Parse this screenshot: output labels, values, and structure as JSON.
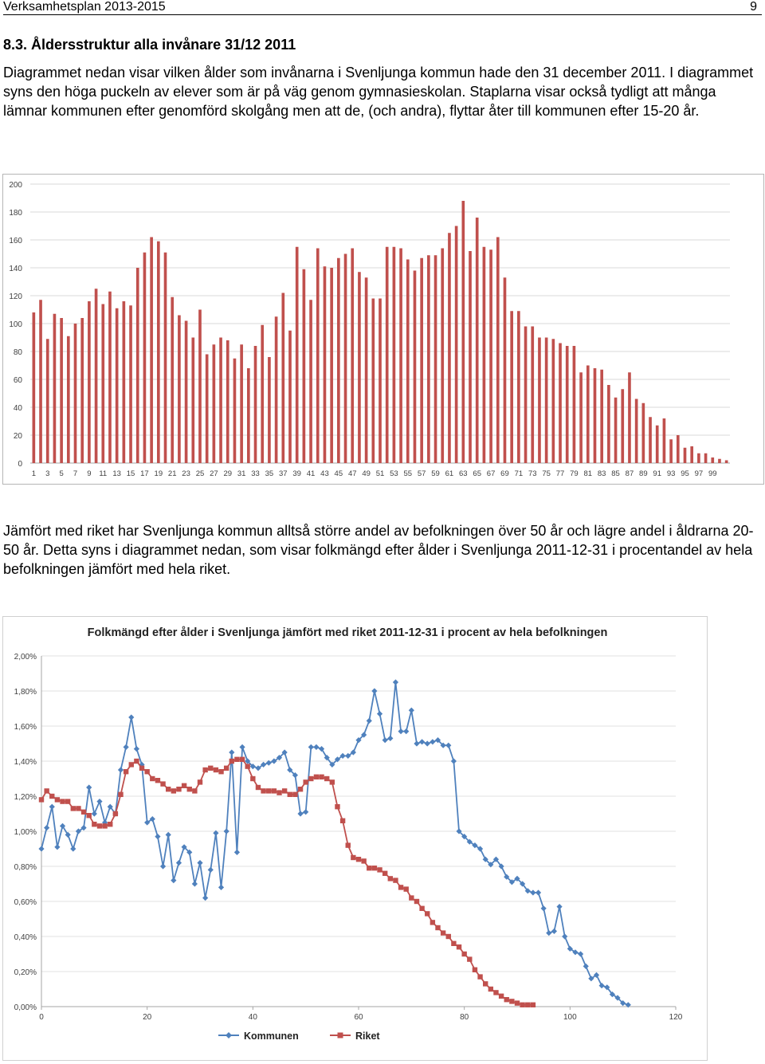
{
  "page": {
    "header_title": "Verksamhetsplan 2013-2015",
    "page_number": "9",
    "heading": "8.3. Åldersstruktur alla invånare 31/12 2011",
    "paragraph1": "Diagrammet nedan visar vilken ålder som invånarna i Svenljunga kommun hade den 31 december 2011. I diagrammet syns den höga puckeln av elever som är på väg genom gymnasieskolan. Staplarna visar också tydligt att många lämnar kommunen efter genomförd skolgång men att de, (och andra), flyttar åter till kommunen efter 15-20 år.",
    "paragraph2": "Jämfört med riket har Svenljunga kommun alltså större andel av befolkningen över 50 år och lägre andel i åldrarna 20-50 år. Detta syns i diagrammet nedan, som visar folkmängd efter ålder i Svenljunga 2011-12-31 i procentandel av hela befolkningen jämfört med hela riket."
  },
  "chart_data": [
    {
      "type": "bar",
      "title": "",
      "xlabel": "",
      "ylabel": "",
      "ylim": [
        0,
        200
      ],
      "yticks": [
        0,
        20,
        40,
        60,
        80,
        100,
        120,
        140,
        160,
        180,
        200
      ],
      "x_tick_labels": [
        "1",
        "3",
        "5",
        "7",
        "9",
        "11",
        "13",
        "15",
        "17",
        "19",
        "21",
        "23",
        "25",
        "27",
        "29",
        "31",
        "33",
        "35",
        "37",
        "39",
        "41",
        "43",
        "45",
        "47",
        "49",
        "51",
        "53",
        "55",
        "57",
        "59",
        "61",
        "63",
        "65",
        "67",
        "69",
        "71",
        "73",
        "75",
        "77",
        "79",
        "81",
        "83",
        "85",
        "87",
        "89",
        "91",
        "93",
        "95",
        "97",
        "99"
      ],
      "grid": true,
      "color": "#c0504d",
      "values": [
        108,
        117,
        89,
        107,
        104,
        91,
        100,
        104,
        116,
        125,
        114,
        123,
        111,
        116,
        113,
        140,
        151,
        162,
        159,
        151,
        119,
        106,
        102,
        90,
        110,
        78,
        85,
        90,
        88,
        75,
        85,
        68,
        84,
        99,
        76,
        105,
        122,
        95,
        155,
        139,
        117,
        154,
        141,
        140,
        147,
        150,
        154,
        137,
        133,
        118,
        118,
        155,
        155,
        154,
        146,
        138,
        147,
        149,
        149,
        154,
        165,
        170,
        188,
        152,
        176,
        155,
        153,
        162,
        133,
        109,
        109,
        98,
        98,
        90,
        90,
        89,
        86,
        84,
        84,
        65,
        70,
        68,
        67,
        56,
        47,
        53,
        65,
        46,
        43,
        33,
        27,
        32,
        17,
        20,
        11,
        12,
        7,
        7,
        4,
        3,
        2
      ]
    },
    {
      "type": "line",
      "title": "Folkmängd efter ålder i Svenljunga jämfört med riket  2011-12-31 i procent av hela befolkningen",
      "xlabel": "",
      "ylabel": "",
      "xlim": [
        0,
        120
      ],
      "xticks": [
        0,
        20,
        40,
        60,
        80,
        100,
        120
      ],
      "ylim": [
        0,
        2.0
      ],
      "yticks": [
        "0,00%",
        "0,20%",
        "0,40%",
        "0,60%",
        "0,80%",
        "1,00%",
        "1,20%",
        "1,40%",
        "1,60%",
        "1,80%",
        "2,00%"
      ],
      "legend": "bottom",
      "series": [
        {
          "name": "Kommunen",
          "color": "#4f81bd",
          "marker": "diamond",
          "values": [
            0.9,
            1.02,
            1.14,
            0.91,
            1.03,
            0.98,
            0.9,
            1.0,
            1.02,
            1.25,
            1.1,
            1.17,
            1.05,
            1.14,
            1.1,
            1.35,
            1.48,
            1.65,
            1.47,
            1.38,
            1.05,
            1.07,
            0.97,
            0.8,
            0.98,
            0.72,
            0.82,
            0.91,
            0.88,
            0.7,
            0.82,
            0.62,
            0.78,
            0.99,
            0.68,
            1.0,
            1.45,
            0.88,
            1.48,
            1.4,
            1.37,
            1.36,
            1.38,
            1.39,
            1.4,
            1.42,
            1.45,
            1.35,
            1.32,
            1.1,
            1.11,
            1.48,
            1.48,
            1.47,
            1.42,
            1.38,
            1.41,
            1.43,
            1.43,
            1.45,
            1.52,
            1.55,
            1.63,
            1.8,
            1.67,
            1.52,
            1.53,
            1.85,
            1.57,
            1.57,
            1.69,
            1.5,
            1.51,
            1.5,
            1.51,
            1.52,
            1.49,
            1.49,
            1.4,
            1.0,
            0.97,
            0.94,
            0.92,
            0.9,
            0.84,
            0.81,
            0.84,
            0.8,
            0.74,
            0.71,
            0.73,
            0.7,
            0.66,
            0.65,
            0.65,
            0.56,
            0.42,
            0.43,
            0.57,
            0.4,
            0.33,
            0.31,
            0.3,
            0.23,
            0.16,
            0.18,
            0.12,
            0.11,
            0.07,
            0.05,
            0.02,
            0.01
          ],
          "x_start": 0
        },
        {
          "name": "Riket",
          "color": "#c0504d",
          "marker": "square",
          "values": [
            1.18,
            1.23,
            1.2,
            1.18,
            1.17,
            1.17,
            1.13,
            1.13,
            1.11,
            1.09,
            1.04,
            1.03,
            1.03,
            1.04,
            1.1,
            1.21,
            1.34,
            1.38,
            1.4,
            1.36,
            1.34,
            1.3,
            1.29,
            1.27,
            1.24,
            1.23,
            1.24,
            1.26,
            1.24,
            1.23,
            1.28,
            1.35,
            1.36,
            1.35,
            1.34,
            1.36,
            1.4,
            1.41,
            1.41,
            1.37,
            1.3,
            1.25,
            1.23,
            1.23,
            1.23,
            1.22,
            1.23,
            1.21,
            1.21,
            1.24,
            1.28,
            1.3,
            1.31,
            1.31,
            1.3,
            1.28,
            1.14,
            1.06,
            0.92,
            0.85,
            0.84,
            0.83,
            0.79,
            0.79,
            0.78,
            0.76,
            0.73,
            0.72,
            0.68,
            0.67,
            0.62,
            0.6,
            0.56,
            0.53,
            0.48,
            0.45,
            0.42,
            0.4,
            0.36,
            0.34,
            0.3,
            0.27,
            0.21,
            0.17,
            0.13,
            0.1,
            0.08,
            0.06,
            0.04,
            0.03,
            0.02,
            0.01,
            0.01,
            0.01
          ],
          "x_start": 0
        }
      ]
    }
  ]
}
